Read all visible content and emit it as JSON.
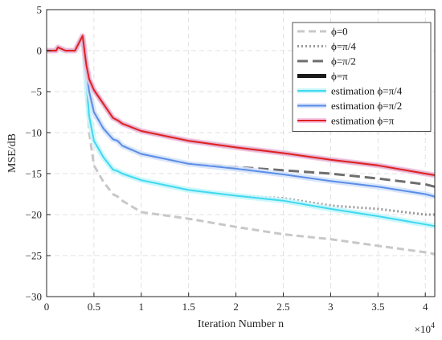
{
  "chart_data": {
    "type": "line",
    "xlabel": "Iteration Number n",
    "ylabel": "MSE/dB",
    "x_multiplier": "×10",
    "x_multiplier_exp": "4",
    "xlim": [
      0,
      4.1
    ],
    "ylim": [
      -30,
      5
    ],
    "xticks": [
      0,
      0.5,
      1,
      1.5,
      2,
      2.5,
      3,
      3.5,
      4
    ],
    "xtick_labels": [
      "0",
      "0.5",
      "1",
      "1.5",
      "2",
      "2.5",
      "3",
      "3.5",
      "4"
    ],
    "yticks": [
      -30,
      -25,
      -20,
      -15,
      -10,
      -5,
      0,
      5
    ],
    "ytick_labels": [
      "−30",
      "−25",
      "−20",
      "−15",
      "−10",
      "−5",
      "0",
      "5"
    ],
    "grid": true,
    "legend_position": "top-right",
    "series": [
      {
        "name": "ϕ=0",
        "color": "#c8c8c8",
        "dash": "dash",
        "width": 3,
        "x": [
          0,
          0.1,
          0.12,
          0.2,
          0.3,
          0.38,
          0.4,
          0.42,
          0.45,
          0.5,
          0.6,
          0.7,
          0.75,
          0.8,
          1.0,
          1.5,
          2.0,
          2.5,
          3.0,
          3.5,
          4.0,
          4.1
        ],
        "y": [
          0,
          0,
          0.4,
          0,
          0,
          1.2,
          0,
          -5,
          -10,
          -14,
          -16,
          -17.5,
          -17.8,
          -18.3,
          -19.7,
          -20.5,
          -21.5,
          -22.4,
          -23.0,
          -23.8,
          -24.6,
          -24.8
        ]
      },
      {
        "name": "ϕ=π/4",
        "color": "#9a9a9a",
        "dash": "dot",
        "width": 3,
        "x": [
          0,
          0.1,
          0.12,
          0.2,
          0.3,
          0.38,
          0.4,
          0.42,
          0.45,
          0.5,
          0.6,
          0.7,
          0.75,
          0.8,
          1.0,
          1.5,
          2.0,
          2.5,
          3.0,
          3.5,
          4.0,
          4.1
        ],
        "y": [
          0,
          0,
          0.4,
          0,
          0,
          1.4,
          0,
          -4,
          -8,
          -11,
          -13,
          -14.5,
          -14.7,
          -15.0,
          -15.8,
          -17.0,
          -17.7,
          -18.0,
          -18.9,
          -19.3,
          -20.0,
          -20.0
        ]
      },
      {
        "name": "ϕ=π/2",
        "color": "#6e6e6e",
        "dash": "longdash",
        "width": 3,
        "x": [
          0,
          0.1,
          0.12,
          0.2,
          0.3,
          0.38,
          0.4,
          0.42,
          0.45,
          0.5,
          0.6,
          0.7,
          0.75,
          0.8,
          1.0,
          1.5,
          2.0,
          2.5,
          3.0,
          3.5,
          4.0,
          4.1
        ],
        "y": [
          0,
          0,
          0.4,
          0,
          0,
          1.6,
          0,
          -2.5,
          -5,
          -7.5,
          -9.5,
          -10.8,
          -11,
          -11.6,
          -12.6,
          -13.8,
          -14.2,
          -14.6,
          -15.0,
          -15.6,
          -16.3,
          -16.6
        ]
      },
      {
        "name": "ϕ=π",
        "color": "#1a1a1a",
        "dash": "solid",
        "width": 5,
        "x": [
          0,
          0.1,
          0.12,
          0.2,
          0.3,
          0.38,
          0.4,
          0.42,
          0.45,
          0.5,
          0.6,
          0.7,
          0.75,
          0.8,
          1.0,
          1.5,
          2.0,
          2.5,
          3.0,
          3.5,
          4.0,
          4.1
        ],
        "y": [
          0,
          0,
          0.4,
          0,
          0,
          1.8,
          0,
          -1.8,
          -3.5,
          -4.8,
          -6.5,
          -8.2,
          -8.5,
          -8.9,
          -9.8,
          -11.0,
          -11.8,
          -12.5,
          -13.3,
          -14.0,
          -15.0,
          -15.2
        ]
      },
      {
        "name": "estimation ϕ=π/4",
        "color": "#40d8f0",
        "halo": "#c8f6fb",
        "dash": "solid",
        "width": 2,
        "x": [
          0,
          0.1,
          0.12,
          0.2,
          0.3,
          0.38,
          0.4,
          0.42,
          0.45,
          0.5,
          0.6,
          0.7,
          0.75,
          0.8,
          1.0,
          1.5,
          2.0,
          2.5,
          3.0,
          3.5,
          4.0,
          4.1
        ],
        "y": [
          0,
          0,
          0.4,
          0,
          0,
          1.4,
          0,
          -4,
          -8,
          -11,
          -13,
          -14.5,
          -14.7,
          -15.0,
          -15.8,
          -17.0,
          -17.7,
          -18.3,
          -19.3,
          -20.2,
          -21.2,
          -21.4
        ]
      },
      {
        "name": "estimation ϕ=π/2",
        "color": "#5a8ee6",
        "halo": "#d6e3fb",
        "dash": "solid",
        "width": 2,
        "x": [
          0,
          0.1,
          0.12,
          0.2,
          0.3,
          0.38,
          0.4,
          0.42,
          0.45,
          0.5,
          0.6,
          0.7,
          0.75,
          0.8,
          1.0,
          1.5,
          2.0,
          2.5,
          3.0,
          3.5,
          4.0,
          4.1
        ],
        "y": [
          0,
          0,
          0.4,
          0,
          0,
          1.6,
          0,
          -2.5,
          -5,
          -7.5,
          -9.5,
          -10.8,
          -11,
          -11.6,
          -12.6,
          -13.8,
          -14.4,
          -15.1,
          -15.9,
          -16.6,
          -17.5,
          -17.8
        ]
      },
      {
        "name": "estimation ϕ=π",
        "color": "#e02020",
        "halo": "#f7c6e6",
        "dash": "solid",
        "width": 2,
        "x": [
          0,
          0.1,
          0.12,
          0.2,
          0.3,
          0.38,
          0.4,
          0.42,
          0.45,
          0.5,
          0.6,
          0.7,
          0.75,
          0.8,
          1.0,
          1.5,
          2.0,
          2.5,
          3.0,
          3.5,
          4.0,
          4.1
        ],
        "y": [
          0,
          0,
          0.4,
          0,
          0,
          1.8,
          0,
          -1.8,
          -3.5,
          -4.8,
          -6.5,
          -8.2,
          -8.5,
          -8.9,
          -9.8,
          -11.0,
          -11.8,
          -12.5,
          -13.3,
          -14.0,
          -15.0,
          -15.2
        ]
      }
    ]
  }
}
